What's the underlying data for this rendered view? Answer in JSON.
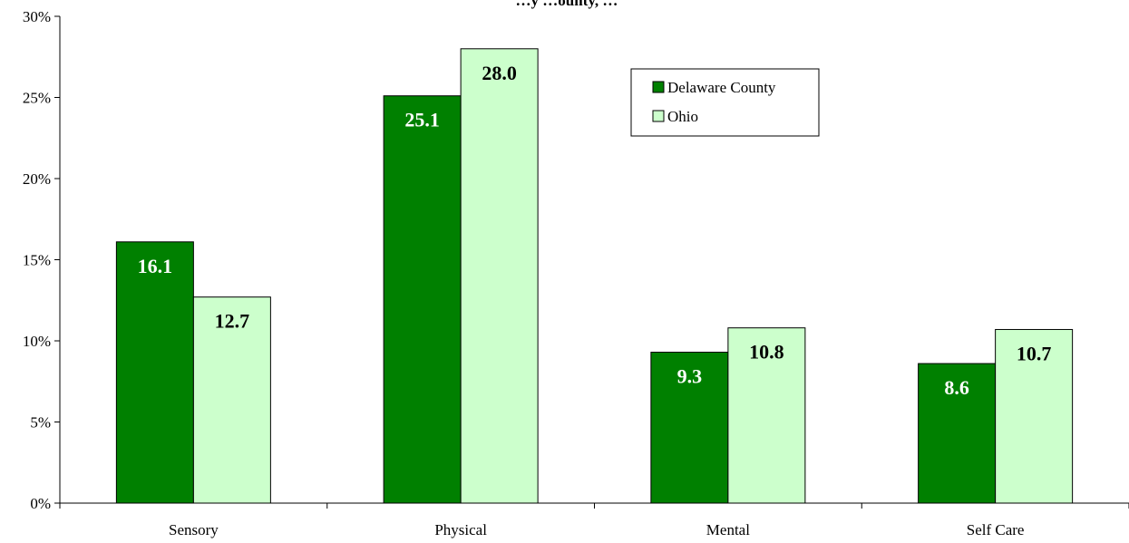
{
  "chart_data": {
    "type": "bar",
    "title": "…y …ounty, …",
    "categories": [
      "Sensory",
      "Physical",
      "Mental",
      "Self Care"
    ],
    "series": [
      {
        "name": "Delaware County",
        "values": [
          16.1,
          25.1,
          9.3,
          8.6
        ],
        "labels": [
          "16.1",
          "25.1",
          "9.3",
          "8.6"
        ],
        "color": "#008000",
        "label_color": "#ffffff"
      },
      {
        "name": "Ohio",
        "values": [
          12.7,
          28.0,
          10.8,
          10.7
        ],
        "labels": [
          "12.7",
          "28.0",
          "10.8",
          "10.7"
        ],
        "color": "#ccffcc",
        "label_color": "#000000"
      }
    ],
    "ylim": [
      0,
      30
    ],
    "yticks": [
      0,
      5,
      10,
      15,
      20,
      25,
      30
    ],
    "ytick_labels": [
      "0%",
      "5%",
      "10%",
      "15%",
      "20%",
      "25%",
      "30%"
    ],
    "xlabel": "",
    "ylabel": "",
    "legend_position": "top-right",
    "grid": false
  }
}
